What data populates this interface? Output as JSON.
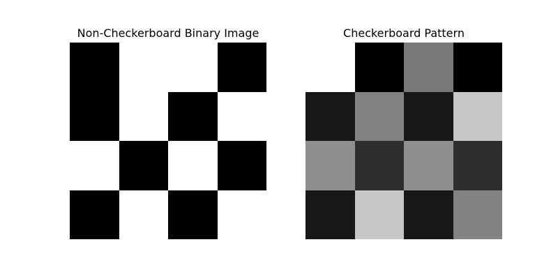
{
  "chart_data": [
    {
      "type": "heatmap",
      "title": "Non-Checkerboard Binary Image",
      "rows": 4,
      "cols": 4,
      "colormap": "gray",
      "vmin": 0,
      "vmax": 1,
      "axes": "off",
      "values": [
        [
          0,
          1,
          1,
          0
        ],
        [
          0,
          1,
          0,
          1
        ],
        [
          1,
          0,
          1,
          0
        ],
        [
          0,
          1,
          0,
          1
        ]
      ]
    },
    {
      "type": "heatmap",
      "title": "Checkerboard Pattern",
      "rows": 4,
      "cols": 4,
      "colormap": "gray",
      "vmin": 0,
      "vmax": 1,
      "axes": "off",
      "values": [
        [
          1.0,
          0.0,
          0.47,
          0.0
        ],
        [
          0.09,
          0.51,
          0.09,
          0.78
        ],
        [
          0.56,
          0.18,
          0.56,
          0.18
        ],
        [
          0.09,
          0.78,
          0.09,
          0.51
        ]
      ]
    }
  ]
}
